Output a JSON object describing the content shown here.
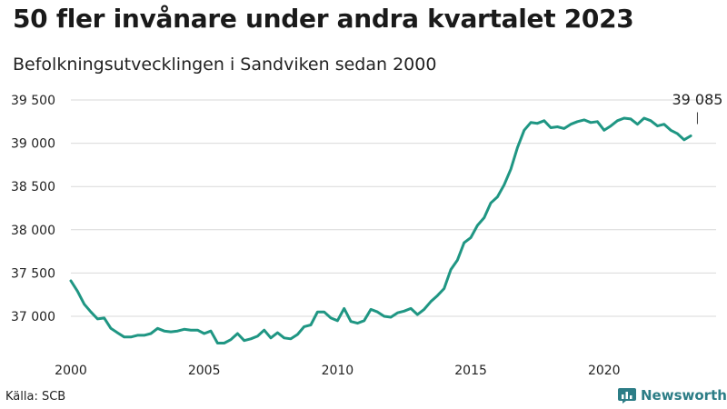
{
  "header": {
    "title": "50 fler invånare under andra kvartalet 2023",
    "subtitle": "Befolkningsutvecklingen i Sandviken sedan 2000"
  },
  "footer": {
    "source": "Källa: SCB",
    "brand": "Newsworthy",
    "brand_icon": "bar-chart-logo-icon"
  },
  "colors": {
    "line": "#1f9683",
    "grid": "#d9d9d9",
    "brand": "#2c7d86"
  },
  "chart_data": {
    "type": "line",
    "title": "50 fler invånare under andra kvartalet 2023",
    "subtitle": "Befolkningsutvecklingen i Sandviken sedan 2000",
    "xlabel": "",
    "ylabel": "",
    "xlim": [
      2000,
      2023.5
    ],
    "ylim": [
      36600,
      39600
    ],
    "grid": true,
    "x_ticks": [
      2000,
      2005,
      2010,
      2015,
      2020
    ],
    "x_tick_labels": [
      "2000",
      "2005",
      "2010",
      "2015",
      "2020"
    ],
    "y_ticks": [
      37000,
      37500,
      38000,
      38500,
      39000,
      39500
    ],
    "y_tick_labels": [
      "37 000",
      "37 500",
      "38 000",
      "38 500",
      "39 000",
      "39 500"
    ],
    "annotation": {
      "x": 2023.5,
      "y": 39085,
      "label": "39 085"
    },
    "series": [
      {
        "x": [
          2000,
          2000.25,
          2000.5,
          2000.75,
          2001,
          2001.25,
          2001.5,
          2001.75,
          2002,
          2002.25,
          2002.5,
          2002.75,
          2003,
          2003.25,
          2003.5,
          2003.75,
          2004,
          2004.25,
          2004.5,
          2004.75,
          2005,
          2005.25,
          2005.5,
          2005.75,
          2006,
          2006.25,
          2006.5,
          2006.75,
          2007,
          2007.25,
          2007.5,
          2007.75,
          2008,
          2008.25,
          2008.5,
          2008.75,
          2009,
          2009.25,
          2009.5,
          2009.75,
          2010,
          2010.25,
          2010.5,
          2010.75,
          2011,
          2011.25,
          2011.5,
          2011.75,
          2012,
          2012.25,
          2012.5,
          2012.75,
          2013,
          2013.25,
          2013.5,
          2013.75,
          2014,
          2014.25,
          2014.5,
          2014.75,
          2015,
          2015.25,
          2015.5,
          2015.75,
          2016,
          2016.25,
          2016.5,
          2016.75,
          2017,
          2017.25,
          2017.5,
          2017.75,
          2018,
          2018.25,
          2018.5,
          2018.75,
          2019,
          2019.25,
          2019.5,
          2019.75,
          2020,
          2020.25,
          2020.5,
          2020.75,
          2021,
          2021.25,
          2021.5,
          2021.75,
          2022,
          2022.25,
          2022.5,
          2022.75,
          2023,
          2023.25
        ],
        "values": [
          37410,
          37290,
          37140,
          37050,
          36970,
          36980,
          36860,
          36810,
          36760,
          36760,
          36780,
          36780,
          36800,
          36860,
          36830,
          36820,
          36830,
          36850,
          36840,
          36840,
          36800,
          36830,
          36690,
          36690,
          36730,
          36800,
          36720,
          36740,
          36770,
          36840,
          36750,
          36810,
          36750,
          36740,
          36790,
          36880,
          36900,
          37050,
          37050,
          36980,
          36950,
          37090,
          36940,
          36920,
          36950,
          37080,
          37050,
          37000,
          36990,
          37040,
          37060,
          37090,
          37020,
          37080,
          37170,
          37240,
          37320,
          37540,
          37650,
          37850,
          37910,
          38050,
          38140,
          38310,
          38380,
          38520,
          38700,
          38950,
          39150,
          39240,
          39230,
          39260,
          39180,
          39190,
          39170,
          39220,
          39250,
          39270,
          39240,
          39250,
          39150,
          39200,
          39260,
          39290,
          39280,
          39220,
          39290,
          39260,
          39200,
          39220,
          39150,
          39110,
          39040,
          39085
        ]
      }
    ]
  }
}
